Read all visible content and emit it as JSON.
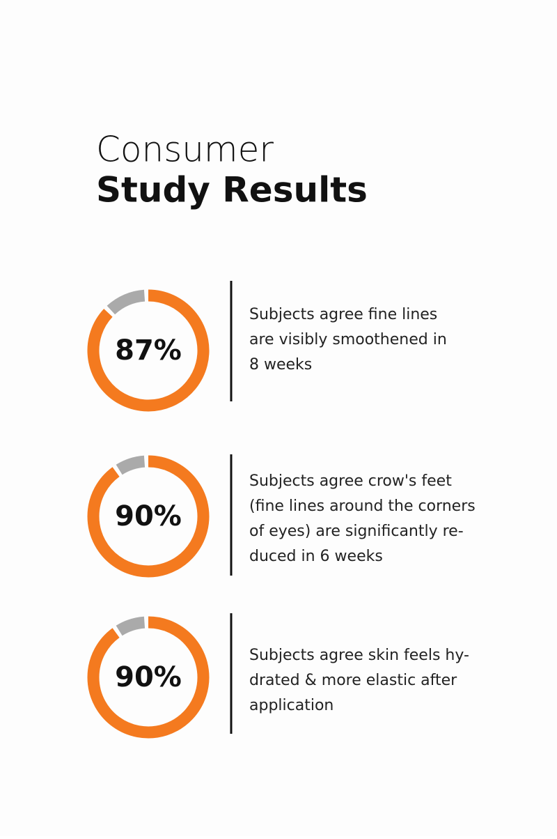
{
  "header": {
    "title_line1": "Consumer",
    "title_line2": "Study Results"
  },
  "stats": [
    {
      "value": 87,
      "value_label": "87%",
      "lines": [
        "Subjects agree fine lines",
        "are visibly smoothened in",
        "8 weeks"
      ]
    },
    {
      "value": 90,
      "value_label": "90%",
      "lines": [
        "Subjects agree crow's feet",
        "(fine lines around the corners",
        "of eyes) are significantly re-",
        "duced in 6 weeks"
      ]
    },
    {
      "value": 90,
      "value_label": "90%",
      "lines": [
        "Subjects agree skin feels hy-",
        "drated & more elastic after",
        "application"
      ]
    }
  ],
  "scale_max": 100
}
